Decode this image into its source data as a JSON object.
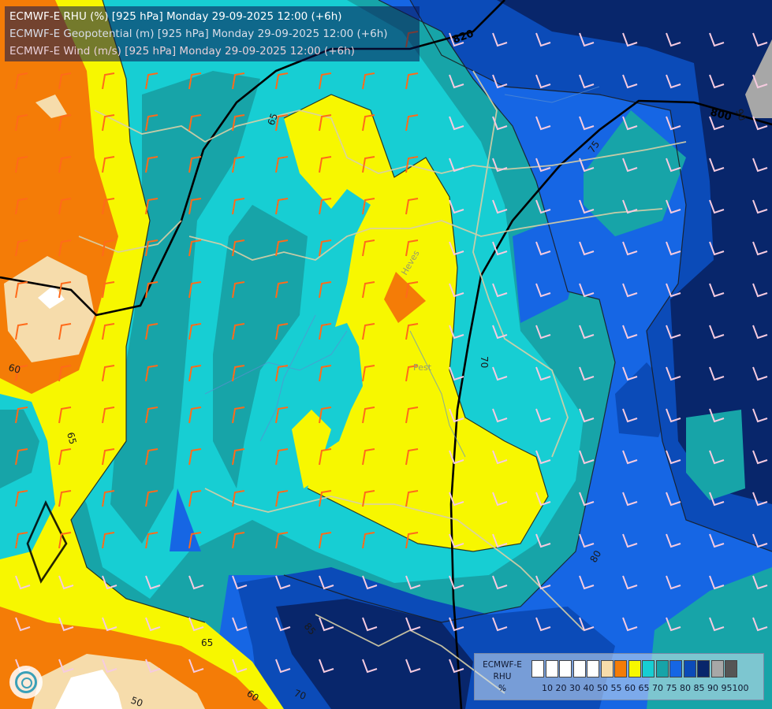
{
  "titles": {
    "rhu": "ECMWF-E RHU (%) [925 hPa] Monday 29-09-2025 12:00 (+6h)",
    "geopotential": "ECMWF-E Geopotential (m) [925 hPa] Monday 29-09-2025 12:00 (+6h)",
    "wind": "ECMWF-E Wind (m/s) [925 hPa] Monday 29-09-2025 12:00 (+6h)"
  },
  "legend": {
    "title_line1": "ECMWF-E",
    "title_line2": "RHU",
    "title_line3": "%",
    "levels": [
      "10",
      "20",
      "30",
      "40",
      "50",
      "55",
      "60",
      "65",
      "70",
      "75",
      "80",
      "85",
      "90",
      "95",
      "100"
    ],
    "colors": [
      "#ffffff",
      "#ffffff",
      "#ffffff",
      "#ffffff",
      "#ffffff",
      "#f6dcab",
      "#f47c07",
      "#f7f700",
      "#17ced3",
      "#17a4a8",
      "#1666e4",
      "#0b4bb8",
      "#08266b",
      "#a7a7a7",
      "#555555"
    ]
  },
  "contour_labels": {
    "c65_top": "65",
    "c65_left": "65",
    "c65_bottom": "65",
    "c60_left": "60",
    "c60_bottom": "60",
    "c50": "50",
    "c70_center": "70",
    "c70_bottom": "70",
    "c75": "75",
    "c80": "80",
    "c85": "85",
    "c90": "90",
    "z820": "820",
    "z800": "800"
  },
  "place_labels": {
    "pest": "Pest",
    "heves": "Heves"
  },
  "colors": {
    "rh_50_55": "#f6dcab",
    "rh_55_60": "#f47c07",
    "rh_60_65": "#f7f700",
    "rh_65_70": "#17ced3",
    "rh_70_75": "#17a4a8",
    "rh_75_80": "#1666e4",
    "rh_80_85": "#0b4bb8",
    "rh_85_90": "#08266b",
    "rh_90_95": "#a7a7a7",
    "wind_orange": "#ff6a1a",
    "wind_pink": "#f6cbe0",
    "border": "#d8cfa6"
  }
}
